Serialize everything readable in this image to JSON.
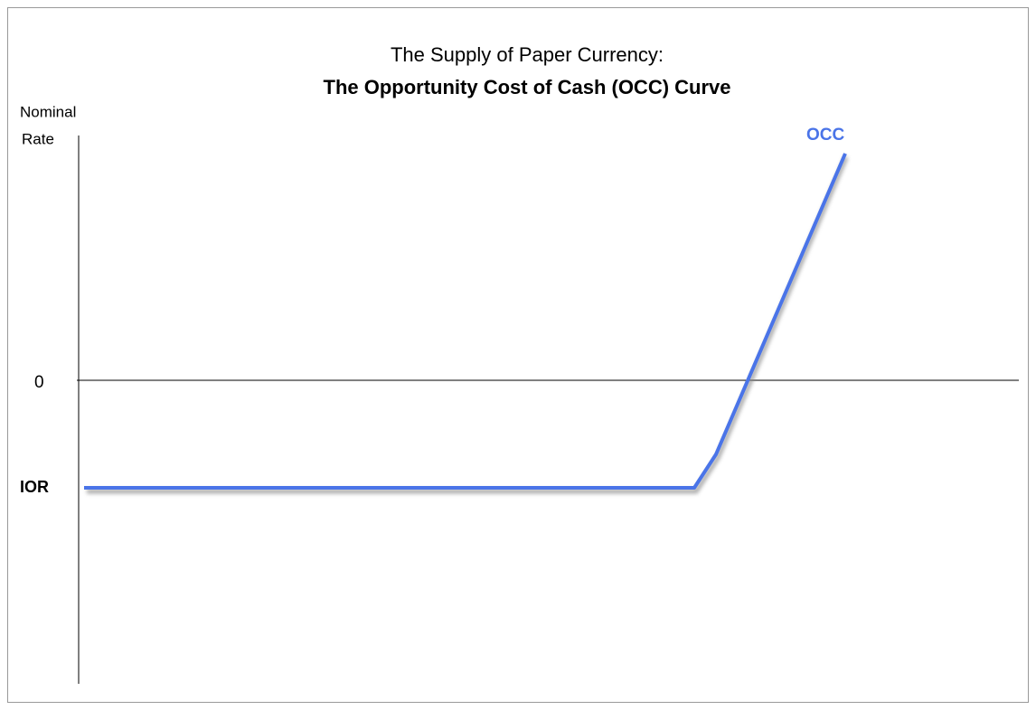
{
  "title": {
    "line1": "The Supply of Paper Currency:",
    "line2": "The Opportunity Cost of Cash (OCC) Curve"
  },
  "y_axis": {
    "label_line1": "Nominal",
    "label_line2": "Rate"
  },
  "levels": {
    "zero": "0",
    "ior": "IOR"
  },
  "curve": {
    "label": "OCC"
  }
}
